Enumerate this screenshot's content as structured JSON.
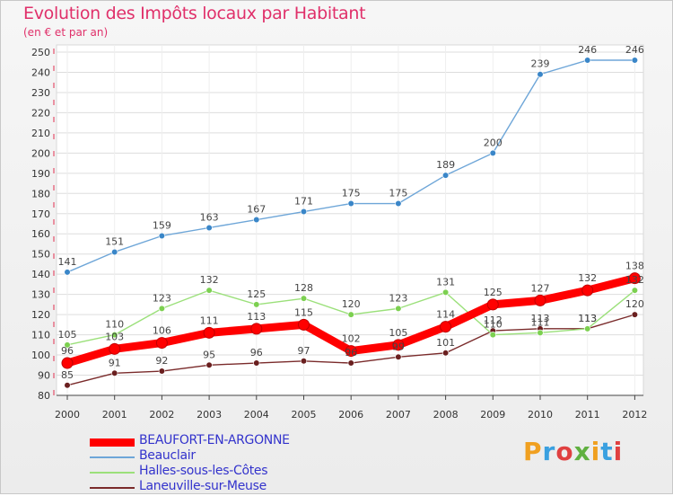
{
  "title": "Evolution des Impôts locaux par Habitant",
  "subtitle": "(en € et par an)",
  "logo_text": "Proxiti",
  "colors": {
    "title": "#e0306a",
    "legend_text": "#3333cc"
  },
  "chart_data": {
    "type": "line",
    "title": "Evolution des Impôts locaux par Habitant",
    "subtitle": "(en € et par an)",
    "xlabel": "",
    "ylabel": "",
    "x": [
      "2000",
      "2001",
      "2002",
      "2003",
      "2004",
      "2005",
      "2006",
      "2007",
      "2008",
      "2009",
      "2010",
      "2011",
      "2012"
    ],
    "ylim": [
      80,
      250
    ],
    "yticks": [
      80,
      90,
      100,
      110,
      120,
      130,
      140,
      150,
      160,
      170,
      180,
      190,
      200,
      210,
      220,
      230,
      240,
      250
    ],
    "grid": true,
    "legend_position": "bottom-left",
    "series": [
      {
        "name": "BEAUFORT-EN-ARGONNE",
        "color": "#ff0000",
        "dot": "#e02020",
        "values": [
          96,
          103,
          106,
          111,
          113,
          115,
          102,
          105,
          114,
          125,
          127,
          132,
          138
        ]
      },
      {
        "name": "Beauclair",
        "color": "#6ea6d8",
        "dot": "#3a86c8",
        "values": [
          141,
          151,
          159,
          163,
          167,
          171,
          175,
          175,
          189,
          200,
          239,
          246,
          246
        ]
      },
      {
        "name": "Halles-sous-les-Côtes",
        "color": "#9be07a",
        "dot": "#7cd050",
        "values": [
          105,
          110,
          123,
          132,
          125,
          128,
          120,
          123,
          131,
          110,
          111,
          113,
          132
        ]
      },
      {
        "name": "Laneuville-sur-Meuse",
        "color": "#7a2b2b",
        "dot": "#6a1f1f",
        "values": [
          85,
          91,
          92,
          95,
          96,
          97,
          96,
          99,
          101,
          112,
          113,
          113,
          120
        ]
      }
    ]
  }
}
